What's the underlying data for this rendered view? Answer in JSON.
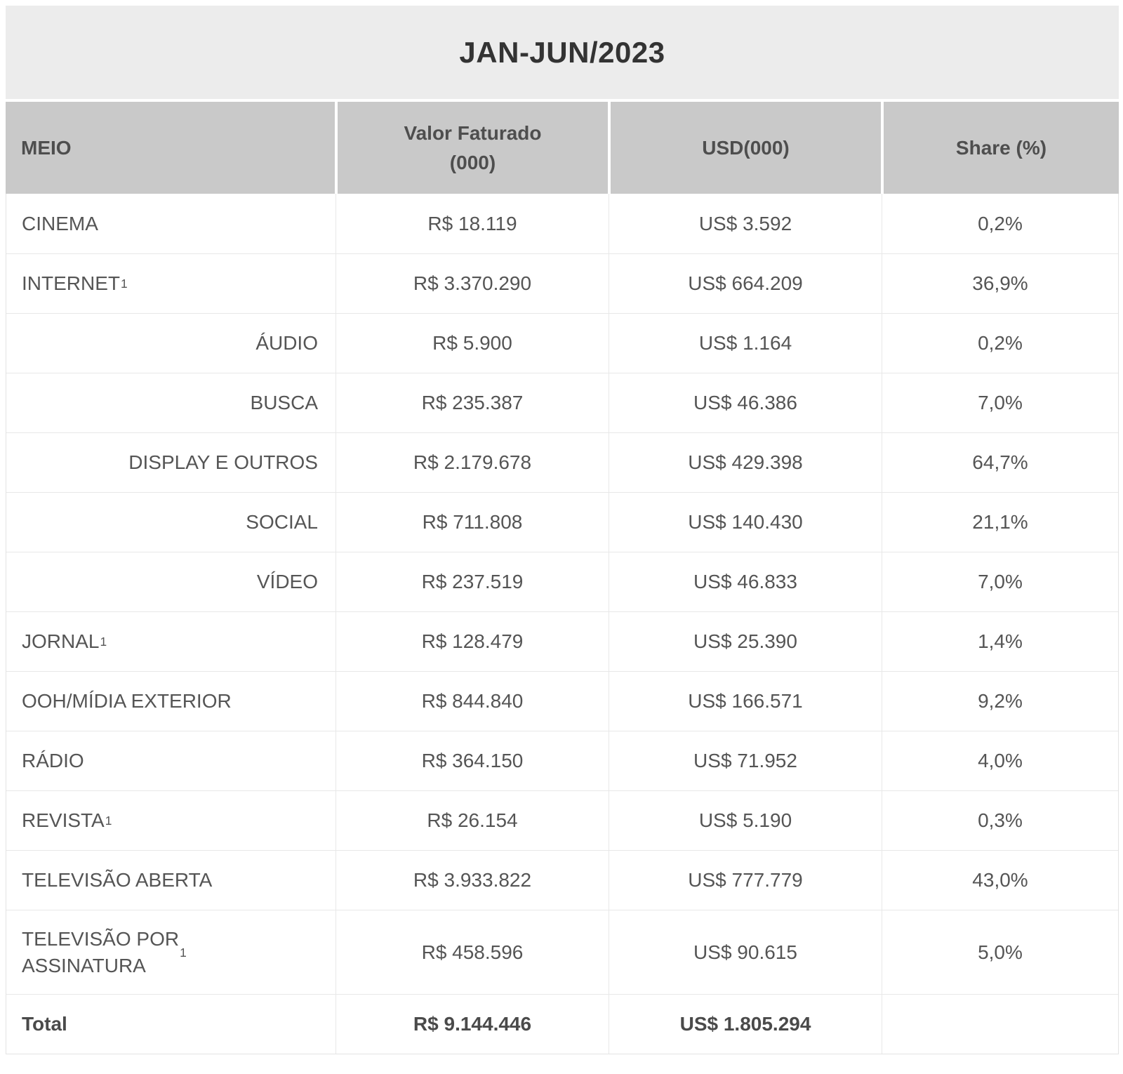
{
  "chart_data": {
    "type": "table",
    "title": "JAN-JUN/2023",
    "columns": {
      "meio": "MEIO",
      "valor_line1": "Valor Faturado",
      "valor_line2": "(000)",
      "usd": "USD(000)",
      "share": "Share (%)"
    },
    "rows": [
      {
        "meio": "CINEMA",
        "footnote": "",
        "subitem": false,
        "valor": "R$ 18.119",
        "usd": "US$ 3.592",
        "share": "0,2%"
      },
      {
        "meio": "INTERNET",
        "footnote": "1",
        "subitem": false,
        "valor": "R$ 3.370.290",
        "usd": "US$ 664.209",
        "share": "36,9%"
      },
      {
        "meio": "ÁUDIO",
        "footnote": "",
        "subitem": true,
        "valor": "R$ 5.900",
        "usd": "US$ 1.164",
        "share": "0,2%"
      },
      {
        "meio": "BUSCA",
        "footnote": "",
        "subitem": true,
        "valor": "R$ 235.387",
        "usd": "US$ 46.386",
        "share": "7,0%"
      },
      {
        "meio": "DISPLAY E OUTROS",
        "footnote": "",
        "subitem": true,
        "valor": "R$ 2.179.678",
        "usd": "US$ 429.398",
        "share": "64,7%"
      },
      {
        "meio": "SOCIAL",
        "footnote": "",
        "subitem": true,
        "valor": "R$ 711.808",
        "usd": "US$ 140.430",
        "share": "21,1%"
      },
      {
        "meio": "VÍDEO",
        "footnote": "",
        "subitem": true,
        "valor": "R$ 237.519",
        "usd": "US$ 46.833",
        "share": "7,0%"
      },
      {
        "meio": "JORNAL",
        "footnote": "1",
        "subitem": false,
        "valor": "R$ 128.479",
        "usd": "US$ 25.390",
        "share": "1,4%"
      },
      {
        "meio": "OOH/MÍDIA EXTERIOR",
        "footnote": "",
        "subitem": false,
        "valor": "R$ 844.840",
        "usd": "US$ 166.571",
        "share": "9,2%"
      },
      {
        "meio": "RÁDIO",
        "footnote": "",
        "subitem": false,
        "valor": "R$ 364.150",
        "usd": "US$ 71.952",
        "share": "4,0%"
      },
      {
        "meio": "REVISTA",
        "footnote": "1",
        "subitem": false,
        "valor": "R$ 26.154",
        "usd": "US$ 5.190",
        "share": "0,3%"
      },
      {
        "meio": "TELEVISÃO ABERTA",
        "footnote": "",
        "subitem": false,
        "valor": "R$ 3.933.822",
        "usd": "US$ 777.779",
        "share": "43,0%"
      },
      {
        "meio": "TELEVISÃO POR\nASSINATURA",
        "footnote": "1",
        "subitem": false,
        "valor": "R$ 458.596",
        "usd": "US$ 90.615",
        "share": "5,0%"
      },
      {
        "meio": "Total",
        "footnote": "",
        "subitem": false,
        "valor": "R$ 9.144.446",
        "usd": "US$ 1.805.294",
        "share": ""
      }
    ],
    "numeric": {
      "categories": [
        "CINEMA",
        "INTERNET",
        "INTERNET/ÁUDIO",
        "INTERNET/BUSCA",
        "INTERNET/DISPLAY E OUTROS",
        "INTERNET/SOCIAL",
        "INTERNET/VÍDEO",
        "JORNAL",
        "OOH/MÍDIA EXTERIOR",
        "RÁDIO",
        "REVISTA",
        "TELEVISÃO ABERTA",
        "TELEVISÃO POR ASSINATURA",
        "Total"
      ],
      "valor_faturado_000_brl": [
        18119,
        3370290,
        5900,
        235387,
        2179678,
        711808,
        237519,
        128479,
        844840,
        364150,
        26154,
        3933822,
        458596,
        9144446
      ],
      "usd_000": [
        3592,
        664209,
        1164,
        46386,
        429398,
        140430,
        46833,
        25390,
        166571,
        71952,
        5190,
        777779,
        90615,
        1805294
      ],
      "share_pct": [
        0.2,
        36.9,
        0.2,
        7.0,
        64.7,
        21.1,
        7.0,
        1.4,
        9.2,
        4.0,
        0.3,
        43.0,
        5.0,
        null
      ]
    }
  },
  "colors": {
    "title_band_bg": "#ececec",
    "header_bg": "#c9c9c9",
    "text": "#555555",
    "row_border": "#e8e8e8"
  }
}
